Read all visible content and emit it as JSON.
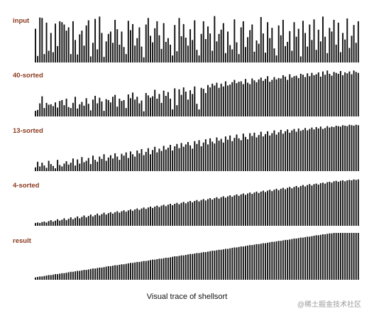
{
  "figure": {
    "caption": "Visual trace of shellsort",
    "watermark": "@稀土掘金技术社区",
    "watermark_icon": "at-sign-icon",
    "bar_color": "#111111",
    "label_color": "#8b3a1e"
  },
  "stages": [
    {
      "label": "input"
    },
    {
      "label": "40-sorted"
    },
    {
      "label": "13-sorted"
    },
    {
      "label": "4-sorted"
    },
    {
      "label": "result"
    }
  ],
  "chart_data": {
    "type": "bar",
    "title": "Visual trace of shellsort",
    "n": 147,
    "stage_names": [
      "input",
      "40-sorted",
      "13-sorted",
      "4-sorted",
      "result"
    ],
    "series": [
      {
        "name": "input",
        "values": [
          0.72,
          0.14,
          0.96,
          0.95,
          0.18,
          0.85,
          0.25,
          0.63,
          0.22,
          0.83,
          0.35,
          0.88,
          0.86,
          0.81,
          0.68,
          0.75,
          0.18,
          0.88,
          0.48,
          0.17,
          0.6,
          0.68,
          0.36,
          0.79,
          0.9,
          0.13,
          0.42,
          0.93,
          0.28,
          0.98,
          0.63,
          0.12,
          0.45,
          0.61,
          0.66,
          0.42,
          0.91,
          0.71,
          0.38,
          0.66,
          0.33,
          0.18,
          0.89,
          0.69,
          0.82,
          0.36,
          0.52,
          0.75,
          0.34,
          0.11,
          0.81,
          0.95,
          0.57,
          0.43,
          0.73,
          0.88,
          0.58,
          0.29,
          0.84,
          0.44,
          0.52,
          0.38,
          0.15,
          0.8,
          0.24,
          0.95,
          0.56,
          0.82,
          0.53,
          0.36,
          0.71,
          0.48,
          0.9,
          0.27,
          0.15,
          0.61,
          0.88,
          0.5,
          0.77,
          0.62,
          0.25,
          0.99,
          0.45,
          0.61,
          0.7,
          0.84,
          0.2,
          0.66,
          0.37,
          0.28,
          0.92,
          0.43,
          0.18,
          0.75,
          0.88,
          0.33,
          0.54,
          0.69,
          0.81,
          0.23,
          0.47,
          0.4,
          0.97,
          0.62,
          0.21,
          0.86,
          0.52,
          0.74,
          0.3,
          0.15,
          0.79,
          0.58,
          0.91,
          0.35,
          0.44,
          0.67,
          0.25,
          0.86,
          0.55,
          0.72,
          0.13,
          0.89,
          0.63,
          0.34,
          0.81,
          0.48,
          0.92,
          0.27,
          0.7,
          0.45,
          0.98,
          0.55,
          0.2,
          0.74,
          0.66,
          0.91,
          0.38,
          0.85,
          0.22,
          0.63,
          0.49,
          0.94,
          0.31,
          0.57,
          0.8,
          0.42,
          0.88
        ]
      },
      {
        "name": "40-sorted",
        "values": [
          0.12,
          0.14,
          0.28,
          0.43,
          0.18,
          0.29,
          0.25,
          0.26,
          0.22,
          0.3,
          0.19,
          0.33,
          0.35,
          0.24,
          0.38,
          0.2,
          0.18,
          0.29,
          0.42,
          0.17,
          0.26,
          0.31,
          0.23,
          0.39,
          0.27,
          0.13,
          0.36,
          0.44,
          0.28,
          0.4,
          0.32,
          0.12,
          0.37,
          0.35,
          0.3,
          0.42,
          0.46,
          0.21,
          0.38,
          0.33,
          0.35,
          0.18,
          0.47,
          0.39,
          0.51,
          0.36,
          0.42,
          0.28,
          0.34,
          0.11,
          0.5,
          0.45,
          0.4,
          0.43,
          0.57,
          0.38,
          0.48,
          0.29,
          0.55,
          0.44,
          0.52,
          0.38,
          0.15,
          0.6,
          0.24,
          0.58,
          0.46,
          0.62,
          0.53,
          0.36,
          0.56,
          0.48,
          0.64,
          0.27,
          0.15,
          0.61,
          0.59,
          0.5,
          0.67,
          0.62,
          0.7,
          0.66,
          0.72,
          0.61,
          0.7,
          0.64,
          0.75,
          0.66,
          0.68,
          0.73,
          0.78,
          0.71,
          0.74,
          0.75,
          0.69,
          0.8,
          0.72,
          0.69,
          0.81,
          0.77,
          0.73,
          0.79,
          0.83,
          0.76,
          0.8,
          0.86,
          0.74,
          0.78,
          0.84,
          0.79,
          0.82,
          0.81,
          0.88,
          0.85,
          0.78,
          0.9,
          0.83,
          0.86,
          0.87,
          0.82,
          0.91,
          0.89,
          0.84,
          0.92,
          0.86,
          0.93,
          0.88,
          0.9,
          0.94,
          0.85,
          0.96,
          0.89,
          0.98,
          0.91,
          0.87,
          0.95,
          0.93,
          0.91,
          0.97,
          0.88,
          0.94,
          0.92,
          0.96,
          0.9,
          0.98,
          0.95,
          0.93
        ]
      },
      {
        "name": "13-sorted",
        "values": [
          0.08,
          0.2,
          0.1,
          0.18,
          0.12,
          0.07,
          0.22,
          0.15,
          0.11,
          0.06,
          0.24,
          0.13,
          0.1,
          0.16,
          0.21,
          0.14,
          0.18,
          0.27,
          0.12,
          0.25,
          0.16,
          0.3,
          0.19,
          0.22,
          0.28,
          0.15,
          0.33,
          0.24,
          0.2,
          0.31,
          0.26,
          0.36,
          0.22,
          0.29,
          0.34,
          0.27,
          0.38,
          0.31,
          0.24,
          0.37,
          0.33,
          0.4,
          0.28,
          0.42,
          0.36,
          0.31,
          0.44,
          0.38,
          0.47,
          0.34,
          0.41,
          0.49,
          0.36,
          0.45,
          0.52,
          0.4,
          0.48,
          0.43,
          0.54,
          0.46,
          0.5,
          0.56,
          0.44,
          0.53,
          0.58,
          0.49,
          0.6,
          0.52,
          0.57,
          0.62,
          0.55,
          0.48,
          0.64,
          0.58,
          0.66,
          0.53,
          0.61,
          0.68,
          0.57,
          0.7,
          0.63,
          0.59,
          0.72,
          0.65,
          0.69,
          0.61,
          0.74,
          0.67,
          0.76,
          0.64,
          0.71,
          0.78,
          0.7,
          0.66,
          0.8,
          0.73,
          0.68,
          0.81,
          0.75,
          0.82,
          0.72,
          0.77,
          0.84,
          0.74,
          0.79,
          0.85,
          0.76,
          0.81,
          0.87,
          0.78,
          0.83,
          0.88,
          0.8,
          0.85,
          0.89,
          0.82,
          0.87,
          0.9,
          0.84,
          0.91,
          0.86,
          0.88,
          0.92,
          0.87,
          0.9,
          0.93,
          0.89,
          0.94,
          0.91,
          0.95,
          0.9,
          0.92,
          0.96,
          0.93,
          0.95,
          0.94,
          0.97,
          0.96,
          0.95,
          0.98,
          0.97,
          0.96,
          0.99,
          0.98,
          0.97,
          0.99,
          0.98
        ]
      },
      {
        "name": "4-sorted",
        "values": [
          0.06,
          0.07,
          0.06,
          0.08,
          0.09,
          0.07,
          0.1,
          0.12,
          0.09,
          0.11,
          0.14,
          0.11,
          0.13,
          0.16,
          0.12,
          0.15,
          0.18,
          0.14,
          0.17,
          0.2,
          0.16,
          0.19,
          0.22,
          0.18,
          0.21,
          0.24,
          0.2,
          0.23,
          0.26,
          0.22,
          0.25,
          0.28,
          0.24,
          0.27,
          0.29,
          0.26,
          0.29,
          0.31,
          0.28,
          0.31,
          0.33,
          0.3,
          0.33,
          0.35,
          0.32,
          0.35,
          0.37,
          0.34,
          0.37,
          0.39,
          0.36,
          0.39,
          0.41,
          0.38,
          0.41,
          0.43,
          0.4,
          0.43,
          0.45,
          0.42,
          0.45,
          0.47,
          0.44,
          0.47,
          0.49,
          0.46,
          0.49,
          0.51,
          0.48,
          0.51,
          0.53,
          0.5,
          0.53,
          0.55,
          0.52,
          0.55,
          0.57,
          0.54,
          0.57,
          0.59,
          0.56,
          0.59,
          0.61,
          0.58,
          0.61,
          0.63,
          0.6,
          0.63,
          0.65,
          0.62,
          0.65,
          0.67,
          0.64,
          0.67,
          0.69,
          0.66,
          0.69,
          0.71,
          0.68,
          0.71,
          0.73,
          0.7,
          0.73,
          0.75,
          0.72,
          0.75,
          0.77,
          0.74,
          0.77,
          0.79,
          0.76,
          0.79,
          0.81,
          0.78,
          0.81,
          0.83,
          0.8,
          0.83,
          0.85,
          0.82,
          0.85,
          0.87,
          0.84,
          0.87,
          0.89,
          0.86,
          0.89,
          0.9,
          0.88,
          0.91,
          0.92,
          0.9,
          0.93,
          0.94,
          0.92,
          0.95,
          0.96,
          0.94,
          0.96,
          0.97,
          0.95,
          0.97,
          0.98,
          0.97,
          0.99,
          0.98,
          0.99
        ]
      },
      {
        "name": "result",
        "values": [
          0.05,
          0.06,
          0.07,
          0.07,
          0.08,
          0.09,
          0.1,
          0.1,
          0.11,
          0.12,
          0.12,
          0.13,
          0.14,
          0.14,
          0.15,
          0.16,
          0.17,
          0.17,
          0.18,
          0.19,
          0.19,
          0.2,
          0.21,
          0.21,
          0.22,
          0.23,
          0.24,
          0.24,
          0.25,
          0.26,
          0.26,
          0.27,
          0.28,
          0.29,
          0.29,
          0.3,
          0.31,
          0.31,
          0.32,
          0.33,
          0.33,
          0.34,
          0.35,
          0.36,
          0.36,
          0.37,
          0.38,
          0.38,
          0.39,
          0.4,
          0.4,
          0.41,
          0.42,
          0.43,
          0.43,
          0.44,
          0.45,
          0.45,
          0.46,
          0.47,
          0.47,
          0.48,
          0.49,
          0.5,
          0.5,
          0.51,
          0.52,
          0.52,
          0.53,
          0.54,
          0.55,
          0.55,
          0.56,
          0.57,
          0.57,
          0.58,
          0.59,
          0.59,
          0.6,
          0.61,
          0.62,
          0.62,
          0.63,
          0.64,
          0.64,
          0.65,
          0.66,
          0.66,
          0.67,
          0.68,
          0.69,
          0.69,
          0.7,
          0.71,
          0.71,
          0.72,
          0.73,
          0.74,
          0.74,
          0.75,
          0.76,
          0.76,
          0.77,
          0.78,
          0.78,
          0.79,
          0.8,
          0.81,
          0.81,
          0.82,
          0.83,
          0.83,
          0.84,
          0.85,
          0.85,
          0.86,
          0.87,
          0.88,
          0.88,
          0.89,
          0.9,
          0.9,
          0.91,
          0.92,
          0.92,
          0.93,
          0.94,
          0.95,
          0.95,
          0.96,
          0.97,
          0.97,
          0.98,
          0.99,
          0.99,
          1.0,
          1.0,
          1.0,
          1.0,
          1.0,
          1.0,
          1.0,
          1.0,
          1.0,
          1.0,
          1.0,
          1.0
        ]
      }
    ],
    "ylim": [
      0,
      1
    ],
    "grid": false,
    "legend": "none"
  }
}
